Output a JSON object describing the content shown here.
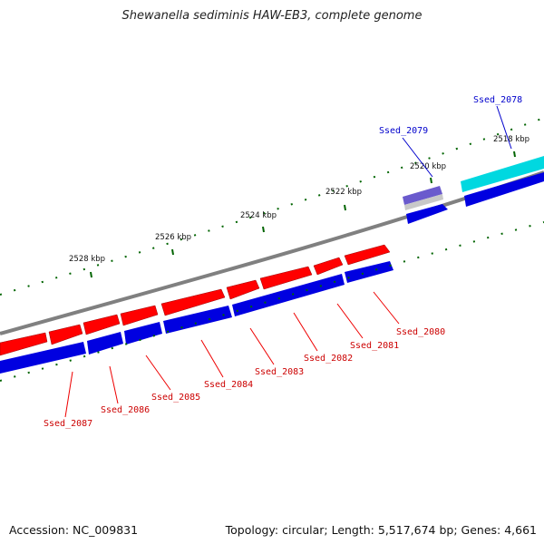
{
  "title": "Shewanella sediminis HAW-EB3, complete genome",
  "footer": {
    "accession": "Accession: NC_009831",
    "summary": "Topology: circular; Length: 5,517,674 bp; Genes: 4,661"
  },
  "colors": {
    "forward_strand": "#ff0000",
    "reverse_strand": "#0000ff",
    "backbone": "#808080",
    "ticks": "#006400",
    "highlight_cyan": "#00e0e0",
    "highlight_purple": "#6a5acd"
  },
  "scale_labels": [
    "2518 kbp",
    "2520 kbp",
    "2522 kbp",
    "2524 kbp",
    "2526 kbp",
    "2528 kbp"
  ],
  "genes_red": [
    "Ssed_2080",
    "Ssed_2081",
    "Ssed_2082",
    "Ssed_2083",
    "Ssed_2084",
    "Ssed_2085",
    "Ssed_2086",
    "Ssed_2087"
  ],
  "genes_blue": [
    "Ssed_2078",
    "Ssed_2079"
  ]
}
